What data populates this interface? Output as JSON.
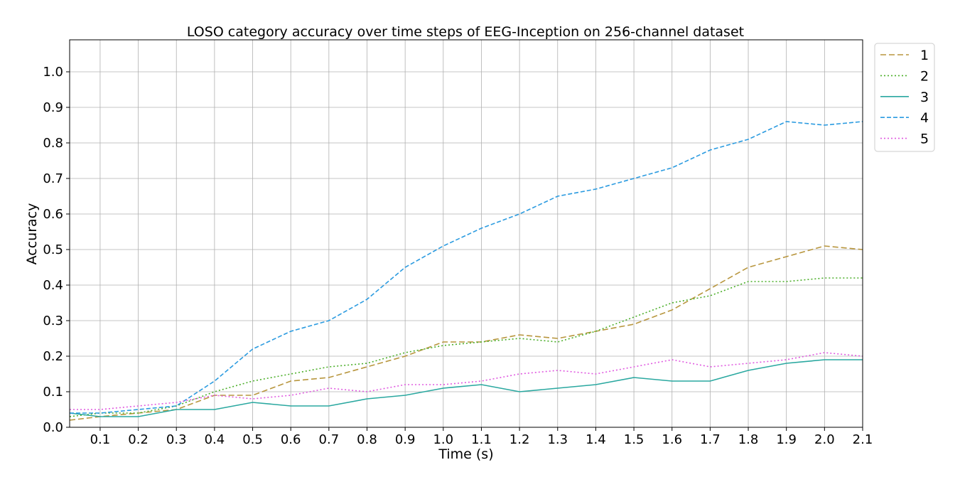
{
  "chart_data": {
    "type": "line",
    "title": "LOSO category accuracy over time steps of EEG-Inception on 256-channel dataset",
    "xlabel": "Time (s)",
    "ylabel": "Accuracy",
    "xlim": [
      0.02,
      2.1
    ],
    "ylim": [
      0.0,
      1.09
    ],
    "xticks": [
      "0.1",
      "0.2",
      "0.3",
      "0.4",
      "0.5",
      "0.6",
      "0.7",
      "0.8",
      "0.9",
      "1.0",
      "1.1",
      "1.2",
      "1.3",
      "1.4",
      "1.5",
      "1.6",
      "1.7",
      "1.8",
      "1.9",
      "2.0",
      "2.1"
    ],
    "yticks": [
      "0.0",
      "0.1",
      "0.2",
      "0.3",
      "0.4",
      "0.5",
      "0.6",
      "0.7",
      "0.8",
      "0.9",
      "1.0"
    ],
    "grid": true,
    "legend_position": "outside-top-right",
    "x": [
      0.02,
      0.1,
      0.2,
      0.3,
      0.4,
      0.5,
      0.6,
      0.7,
      0.8,
      0.9,
      1.0,
      1.1,
      1.2,
      1.3,
      1.4,
      1.5,
      1.6,
      1.7,
      1.8,
      1.9,
      2.0,
      2.1
    ],
    "series": [
      {
        "name": "1",
        "color": "#b8963e",
        "dash": "8,4",
        "values": [
          0.02,
          0.03,
          0.04,
          0.05,
          0.09,
          0.09,
          0.13,
          0.14,
          0.17,
          0.2,
          0.24,
          0.24,
          0.26,
          0.25,
          0.27,
          0.29,
          0.33,
          0.39,
          0.45,
          0.48,
          0.51,
          0.5
        ]
      },
      {
        "name": "2",
        "color": "#4caf2a",
        "dash": "2,3",
        "values": [
          0.03,
          0.04,
          0.04,
          0.06,
          0.1,
          0.13,
          0.15,
          0.17,
          0.18,
          0.21,
          0.23,
          0.24,
          0.25,
          0.24,
          0.27,
          0.31,
          0.35,
          0.37,
          0.41,
          0.41,
          0.42,
          0.42
        ]
      },
      {
        "name": "3",
        "color": "#2aa8a0",
        "dash": "",
        "values": [
          0.04,
          0.03,
          0.03,
          0.05,
          0.05,
          0.07,
          0.06,
          0.06,
          0.08,
          0.09,
          0.11,
          0.12,
          0.1,
          0.11,
          0.12,
          0.14,
          0.13,
          0.13,
          0.16,
          0.18,
          0.19,
          0.19
        ]
      },
      {
        "name": "4",
        "color": "#2b9be0",
        "dash": "6,3",
        "values": [
          0.04,
          0.04,
          0.05,
          0.06,
          0.13,
          0.22,
          0.27,
          0.3,
          0.36,
          0.45,
          0.51,
          0.56,
          0.6,
          0.65,
          0.67,
          0.7,
          0.73,
          0.78,
          0.81,
          0.86,
          0.85,
          0.86
        ]
      },
      {
        "name": "5",
        "color": "#e05ae0",
        "dash": "2,3",
        "values": [
          0.05,
          0.05,
          0.06,
          0.07,
          0.09,
          0.08,
          0.09,
          0.11,
          0.1,
          0.12,
          0.12,
          0.13,
          0.15,
          0.16,
          0.15,
          0.17,
          0.19,
          0.17,
          0.18,
          0.19,
          0.21,
          0.2
        ]
      }
    ]
  }
}
